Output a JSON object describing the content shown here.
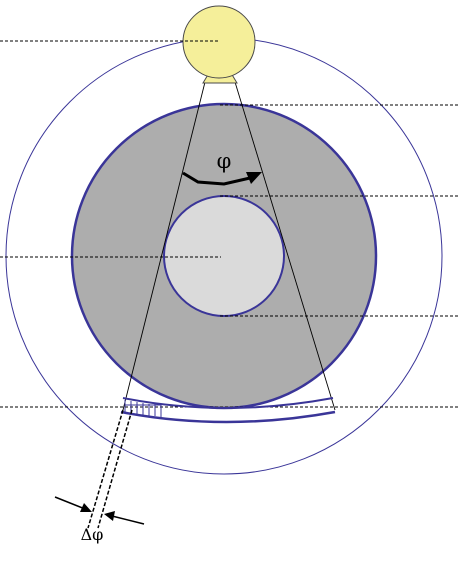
{
  "labels": {
    "rotation_angle": "φ",
    "angular_step": "Δφ"
  },
  "colors": {
    "outer_circle": "#3a3598",
    "object_fill": "#adadad",
    "object_stroke": "#3a3598",
    "inner_fill": "#dadada",
    "source_fill": "#f5ef9a",
    "source_stroke": "#4a4a4a",
    "detector_stroke": "#3a3598",
    "line": "#000000"
  }
}
